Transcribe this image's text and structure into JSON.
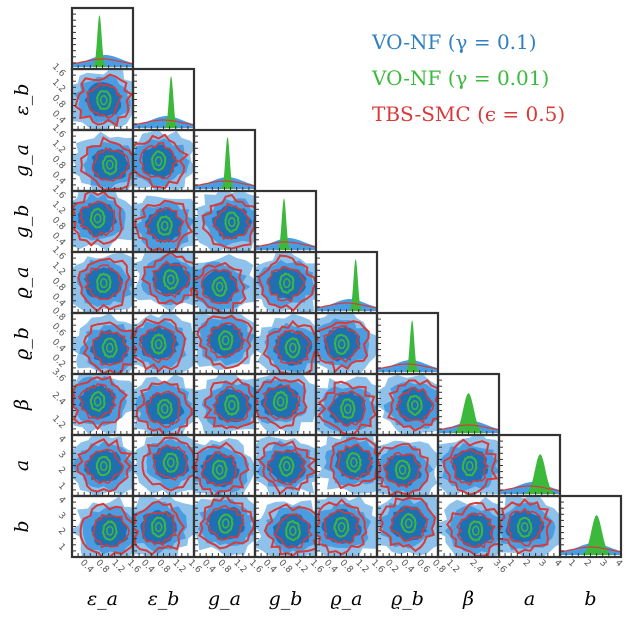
{
  "chart_data": {
    "type": "corner",
    "parameters": [
      "ε_a",
      "ε_b",
      "g_a",
      "g_b",
      "ϱ_a",
      "ϱ_b",
      "β",
      "a",
      "b"
    ],
    "tick_labels": {
      "ε_a": [
        "0.4",
        "0.8",
        "1.2",
        "1.6"
      ],
      "ε_b": [
        "0.4",
        "0.8",
        "1.2",
        "1.6"
      ],
      "g_a": [
        "0.4",
        "0.8",
        "1.2",
        "1.6"
      ],
      "g_b": [
        "0.4",
        "0.8",
        "1.2",
        "1.6"
      ],
      "ϱ_a": [
        "0.4",
        "0.8",
        "1.2",
        "1.6"
      ],
      "ϱ_b": [
        "0.2",
        "0.4",
        "0.6",
        "0.8"
      ],
      "β": [
        "1.2",
        "2.4",
        "3.6"
      ],
      "a": [
        "1",
        "2",
        "3",
        "4"
      ],
      "b": [
        "1",
        "2",
        "3",
        "4"
      ]
    },
    "series": [
      {
        "name": "VO-NF (γ = 0.1)",
        "color": "#2f7fc1"
      },
      {
        "name": "VO-NF (γ = 0.01)",
        "color": "#3cb93c"
      },
      {
        "name": "TBS-SMC (ϵ = 0.5)",
        "color": "#d83a3a"
      }
    ],
    "legend_position": "top-right",
    "grid": false
  }
}
